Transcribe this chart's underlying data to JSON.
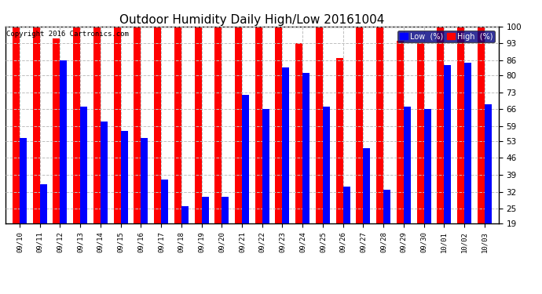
{
  "title": "Outdoor Humidity Daily High/Low 20161004",
  "copyright": "Copyright 2016 Cartronics.com",
  "categories": [
    "09/10",
    "09/11",
    "09/12",
    "09/13",
    "09/14",
    "09/15",
    "09/16",
    "09/17",
    "09/18",
    "09/19",
    "09/20",
    "09/21",
    "09/22",
    "09/23",
    "09/24",
    "09/25",
    "09/26",
    "09/27",
    "09/28",
    "09/29",
    "09/30",
    "10/01",
    "10/02",
    "10/03"
  ],
  "high_values": [
    100,
    100,
    95,
    100,
    100,
    100,
    100,
    100,
    100,
    100,
    100,
    100,
    100,
    100,
    93,
    100,
    87,
    100,
    100,
    94,
    93,
    100,
    100,
    100
  ],
  "low_values": [
    54,
    35,
    86,
    67,
    61,
    57,
    54,
    37,
    26,
    30,
    30,
    72,
    66,
    83,
    81,
    67,
    34,
    50,
    33,
    67,
    66,
    84,
    85,
    68
  ],
  "high_color": "#FF0000",
  "low_color": "#0000FF",
  "bg_color": "#FFFFFF",
  "grid_color": "#C0C0C0",
  "ylim_min": 19,
  "ylim_max": 100,
  "yticks": [
    19,
    25,
    32,
    39,
    46,
    53,
    59,
    66,
    73,
    80,
    86,
    93,
    100
  ],
  "title_fontsize": 11,
  "bar_width": 0.35,
  "legend_low_label": "Low  (%)",
  "legend_high_label": "High  (%)"
}
